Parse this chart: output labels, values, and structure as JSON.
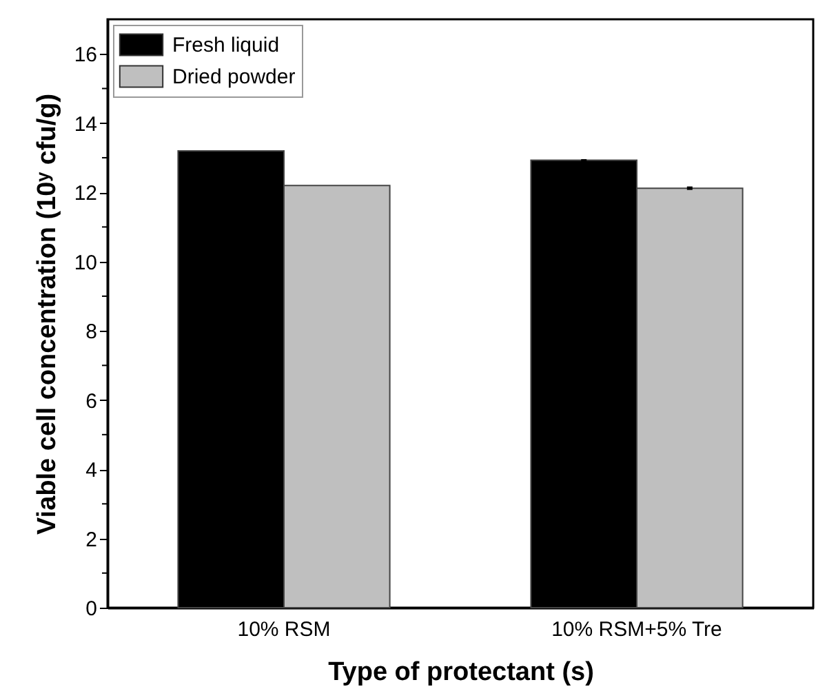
{
  "chart_data": {
    "type": "bar",
    "xlabel": "Type of protectant (s)",
    "ylabel": "Viable cell concentration (10ʸ cfu/g)",
    "categories": [
      "10% RSM",
      "10% RSM+5% Tre"
    ],
    "series": [
      {
        "name": "Fresh liquid",
        "color": "#000000",
        "values": [
          13.2,
          12.93
        ],
        "errors": [
          null,
          0.03
        ]
      },
      {
        "name": "Dried powder",
        "color": "#bfbfbf",
        "values": [
          12.2,
          12.12
        ],
        "errors": [
          null,
          0.05
        ]
      }
    ],
    "ylim": [
      0,
      17
    ],
    "yticks": [
      0,
      {
        "value": 1,
        "label": null
      },
      2,
      {
        "value": 3,
        "label": null
      },
      4,
      {
        "value": 5,
        "label": null
      },
      6,
      {
        "value": 7,
        "label": null
      },
      8,
      {
        "value": 9,
        "label": null
      },
      10,
      {
        "value": 11,
        "label": null
      },
      12,
      {
        "value": 13,
        "label": null
      },
      14,
      {
        "value": 15,
        "label": null
      },
      16
    ],
    "grid": false,
    "legend": "top left"
  }
}
